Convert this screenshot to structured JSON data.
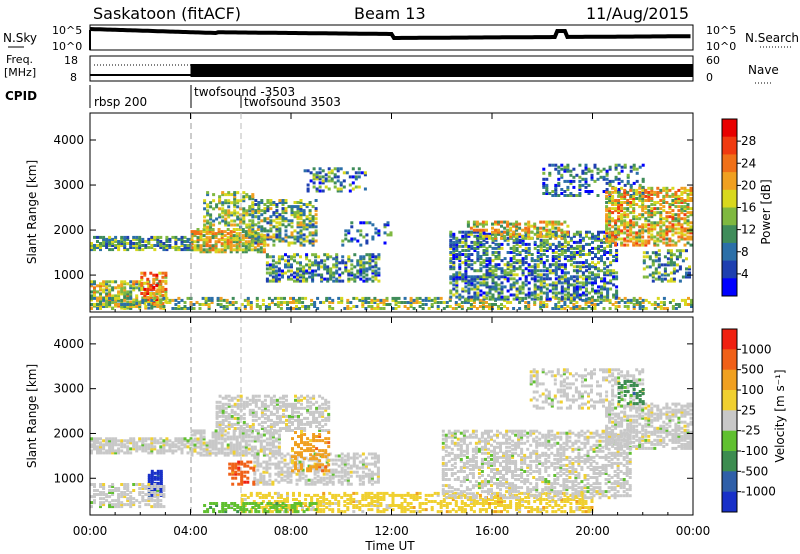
{
  "header": {
    "station": "Saskatoon (fitACF)",
    "beam": "Beam 13",
    "date": "11/Aug/2015"
  },
  "top_panels": {
    "noise": {
      "left_label": "N.Sky",
      "left_ticks": [
        "10^5",
        "10^0"
      ],
      "right_ticks": [
        "10^5",
        "10^0"
      ],
      "right_label": "N.Search",
      "right_line": "dotted"
    },
    "freq": {
      "left_label": "Freq.",
      "left_unit": "[MHz]",
      "left_ticks": [
        "18",
        "8"
      ],
      "right_ticks": [
        "60",
        "0"
      ],
      "right_label": "Nave",
      "right_line": "dotted"
    },
    "cpid": {
      "label": "CPID",
      "entries": [
        "rbsp 200",
        "twofsound -3503",
        "twofsound 3503"
      ]
    }
  },
  "chart_data": [
    {
      "type": "heatmap",
      "panel": "power",
      "ylabel": "Slant Range [km]",
      "yticks": [
        1000,
        2000,
        3000,
        4000
      ],
      "ylim": [
        180,
        4600
      ],
      "xlim": [
        0,
        24
      ],
      "colorbar": {
        "label": "Power [dB]",
        "ticks": [
          "28",
          "24",
          "20",
          "16",
          "12",
          "8",
          "4"
        ],
        "range": [
          0,
          30
        ],
        "colors": [
          "#0000ff",
          "#1e3fb0",
          "#2b6fa8",
          "#3f8c5a",
          "#7fb840",
          "#d8d81e",
          "#f0a020",
          "#f07018",
          "#f03a10",
          "#e80000"
        ]
      },
      "regions": [
        {
          "t0": 0.0,
          "t1": 4.0,
          "r0": 1600,
          "r1": 1900,
          "level": 0.35,
          "density": 0.7
        },
        {
          "t0": 4.0,
          "t1": 7.0,
          "r0": 1550,
          "r1": 2050,
          "level": 0.55,
          "density": 0.75
        },
        {
          "t0": 6.3,
          "t1": 9.0,
          "r0": 1700,
          "r1": 2700,
          "level": 0.4,
          "density": 0.5
        },
        {
          "t0": 4.5,
          "t1": 6.5,
          "r0": 2100,
          "r1": 2900,
          "level": 0.45,
          "density": 0.45
        },
        {
          "t0": 7.0,
          "t1": 11.5,
          "r0": 900,
          "r1": 1500,
          "level": 0.3,
          "density": 0.55
        },
        {
          "t0": 8.5,
          "t1": 11.0,
          "r0": 2900,
          "r1": 3400,
          "level": 0.3,
          "density": 0.3
        },
        {
          "t0": 10.0,
          "t1": 12.0,
          "r0": 1700,
          "r1": 2200,
          "level": 0.25,
          "density": 0.2
        },
        {
          "t0": 0.0,
          "t1": 2.8,
          "r0": 300,
          "r1": 900,
          "level": 0.5,
          "density": 0.6
        },
        {
          "t0": 2.0,
          "t1": 3.0,
          "r0": 400,
          "r1": 1100,
          "level": 0.7,
          "density": 0.5
        },
        {
          "t0": 0.0,
          "t1": 24.0,
          "r0": 200,
          "r1": 550,
          "level": 0.45,
          "density": 0.45
        },
        {
          "t0": 14.3,
          "t1": 21.0,
          "r0": 500,
          "r1": 2000,
          "level": 0.3,
          "density": 0.55
        },
        {
          "t0": 15.0,
          "t1": 19.0,
          "r0": 1850,
          "r1": 2250,
          "level": 0.55,
          "density": 0.5
        },
        {
          "t0": 18.0,
          "t1": 22.0,
          "r0": 2800,
          "r1": 3500,
          "level": 0.25,
          "density": 0.3
        },
        {
          "t0": 20.5,
          "t1": 24.0,
          "r0": 1700,
          "r1": 3000,
          "level": 0.6,
          "density": 0.6
        },
        {
          "t0": 22.0,
          "t1": 24.0,
          "r0": 900,
          "r1": 1600,
          "level": 0.35,
          "density": 0.4
        }
      ]
    },
    {
      "type": "heatmap",
      "panel": "velocity",
      "ylabel": "Slant Range [km]",
      "yticks": [
        1000,
        2000,
        3000,
        4000
      ],
      "ylim": [
        180,
        4600
      ],
      "xlim": [
        0,
        24
      ],
      "xticks": [
        "00:00",
        "04:00",
        "08:00",
        "12:00",
        "16:00",
        "20:00",
        "00:00"
      ],
      "xlabel": "Time UT",
      "colorbar": {
        "label": "Velocity [m s⁻¹]",
        "ticks": [
          "1000",
          "500",
          "100",
          "25",
          "-25",
          "-100",
          "-500",
          "-1000"
        ],
        "colors": [
          "#1830c8",
          "#2f5fa8",
          "#3c8c50",
          "#60c030",
          "#c8c8c8",
          "#f0d030",
          "#f0a020",
          "#f06018",
          "#f02010"
        ]
      },
      "regions": [
        {
          "t0": 0.0,
          "t1": 4.0,
          "r0": 1600,
          "r1": 1950,
          "cls": 4,
          "density": 0.7
        },
        {
          "t0": 4.0,
          "t1": 7.5,
          "r0": 1550,
          "r1": 2100,
          "cls": 4,
          "density": 0.7
        },
        {
          "t0": 5.0,
          "t1": 9.5,
          "r0": 2100,
          "r1": 2900,
          "cls": 4,
          "density": 0.5
        },
        {
          "t0": 6.5,
          "t1": 11.5,
          "r0": 900,
          "r1": 1600,
          "cls": 4,
          "density": 0.5
        },
        {
          "t0": 8.0,
          "t1": 9.5,
          "r0": 1200,
          "r1": 2100,
          "cls": 6,
          "density": 0.35
        },
        {
          "t0": 5.5,
          "t1": 6.5,
          "r0": 900,
          "r1": 1400,
          "cls": 7,
          "density": 0.4
        },
        {
          "t0": 2.3,
          "t1": 2.9,
          "r0": 650,
          "r1": 1200,
          "cls": 0,
          "density": 0.8
        },
        {
          "t0": 0.0,
          "t1": 3.0,
          "r0": 400,
          "r1": 900,
          "cls": 4,
          "density": 0.5
        },
        {
          "t0": 6.0,
          "t1": 20.0,
          "r0": 200,
          "r1": 700,
          "cls": 5,
          "density": 0.5
        },
        {
          "t0": 4.5,
          "t1": 9.0,
          "r0": 200,
          "r1": 500,
          "cls": 3,
          "density": 0.45
        },
        {
          "t0": 14.0,
          "t1": 21.5,
          "r0": 600,
          "r1": 2100,
          "cls": 4,
          "density": 0.5
        },
        {
          "t0": 17.5,
          "t1": 22.0,
          "r0": 2600,
          "r1": 3500,
          "cls": 4,
          "density": 0.35
        },
        {
          "t0": 20.5,
          "t1": 24.0,
          "r0": 1700,
          "r1": 2700,
          "cls": 4,
          "density": 0.6
        },
        {
          "t0": 21.0,
          "t1": 22.0,
          "r0": 2700,
          "r1": 3200,
          "cls": 2,
          "density": 0.3
        }
      ]
    }
  ]
}
